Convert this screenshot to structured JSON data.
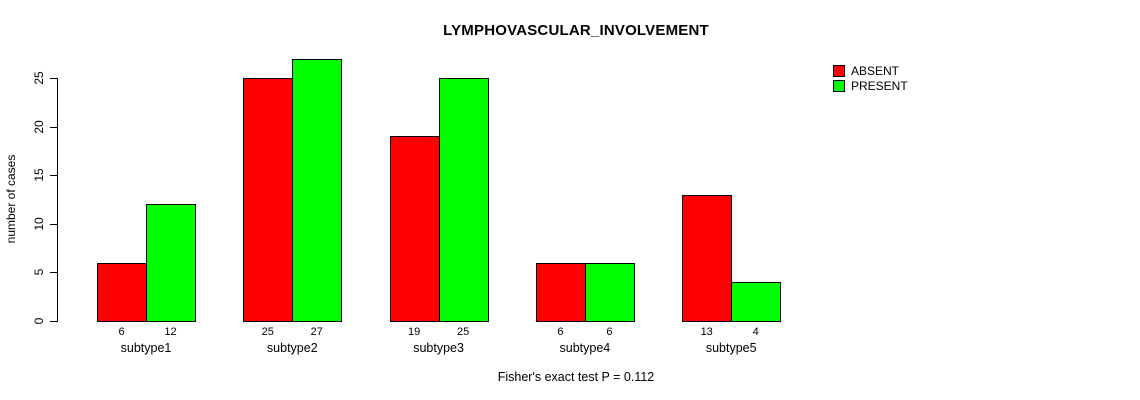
{
  "title": "LYMPHOVASCULAR_INVOLVEMENT",
  "footer": "Fisher's exact test P = 0.112",
  "colors": {
    "absent": "#FF0000",
    "present": "#00FF00",
    "axis": "#000000",
    "background": "#FFFFFF"
  },
  "legend": {
    "items": [
      {
        "label": "ABSENT",
        "color": "#FF0000"
      },
      {
        "label": "PRESENT",
        "color": "#00FF00"
      }
    ]
  },
  "chart_data": {
    "type": "bar",
    "title": "LYMPHOVASCULAR_INVOLVEMENT",
    "categories": [
      "subtype1",
      "subtype2",
      "subtype3",
      "subtype4",
      "subtype5"
    ],
    "series": [
      {
        "name": "ABSENT",
        "color": "#FF0000",
        "values": [
          6,
          25,
          19,
          6,
          13
        ]
      },
      {
        "name": "PRESENT",
        "color": "#00FF00",
        "values": [
          12,
          27,
          25,
          6,
          4
        ]
      }
    ],
    "bar_value_labels": [
      [
        "6",
        "12"
      ],
      [
        "25",
        "27"
      ],
      [
        "19",
        "25"
      ],
      [
        "6",
        "6"
      ],
      [
        "13",
        "4"
      ]
    ],
    "xlabel": "",
    "ylabel": "number of cases",
    "yticks": [
      0,
      5,
      10,
      15,
      20,
      25
    ],
    "ylim": [
      0,
      27
    ],
    "grid": false,
    "legend_position": "top-right",
    "annotation": "Fisher's exact test P = 0.112"
  }
}
